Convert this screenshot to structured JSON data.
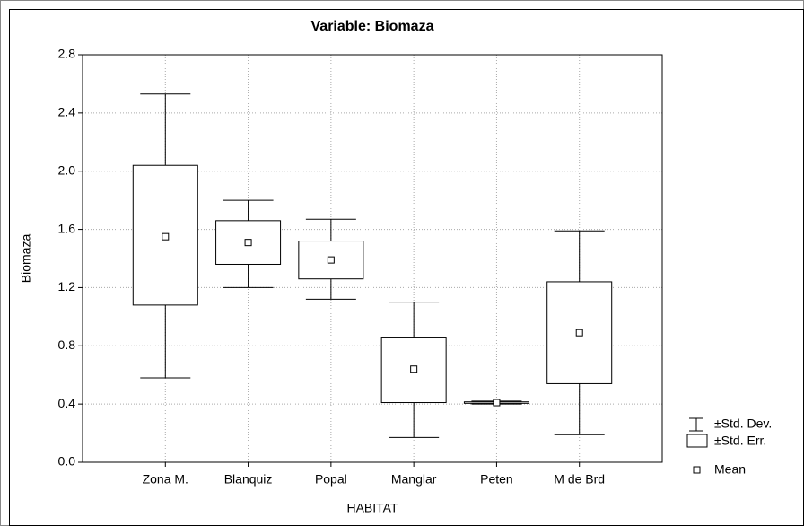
{
  "chart_data": {
    "type": "box",
    "title": "Variable: Biomaza",
    "x_label": "HABITAT",
    "y_label": "Biomaza",
    "categories": [
      "Zona M.",
      "Blanquiz",
      "Popal",
      "Manglar",
      "Peten",
      "M de Brd"
    ],
    "mean": [
      1.55,
      1.51,
      1.39,
      0.64,
      0.41,
      0.89
    ],
    "se_low": [
      1.08,
      1.36,
      1.26,
      0.41,
      0.405,
      0.54
    ],
    "se_high": [
      2.04,
      1.66,
      1.52,
      0.86,
      0.415,
      1.24
    ],
    "sd_low": [
      0.58,
      1.2,
      1.12,
      0.17,
      0.4,
      0.19
    ],
    "sd_high": [
      2.53,
      1.8,
      1.67,
      1.1,
      0.42,
      1.59
    ],
    "legend": [
      "±Std. Dev.",
      "±Std. Err.",
      "Mean"
    ],
    "ylim": [
      0,
      2.8
    ],
    "yticks": [
      {
        "value": 0,
        "label": "0.0"
      },
      0.4,
      0.8,
      1.2,
      1.6,
      {
        "value": 2,
        "label": "2.0"
      },
      2.4,
      2.8
    ],
    "grid": true
  }
}
